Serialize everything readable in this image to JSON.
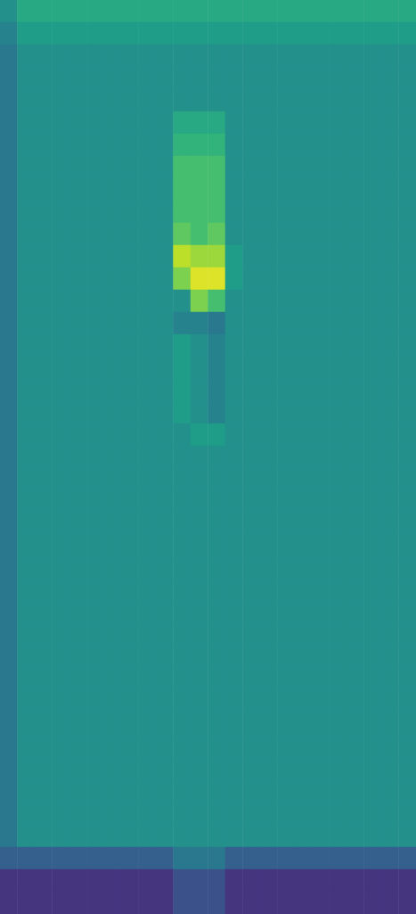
{
  "chart_data": {
    "type": "heatmap",
    "color": "viridis",
    "tick_labels": false,
    "grid": false,
    "color_range": [
      0,
      10
    ],
    "cells": [
      [
        5,
        6,
        6,
        6,
        6,
        6,
        6,
        6,
        6,
        6,
        6,
        6,
        6,
        6,
        6,
        6,
        6,
        6,
        6,
        6,
        6,
        6,
        6,
        6
      ],
      [
        4.5,
        5.5,
        5.5,
        5.5,
        5.5,
        5.5,
        5.5,
        5.5,
        5.5,
        5.5,
        5.5,
        5.5,
        5.5,
        5.5,
        5.5,
        5.5,
        5.5,
        5.5,
        5.5,
        5.5,
        5.5,
        5.5,
        5.5,
        5.5
      ],
      [
        4,
        5,
        5,
        5,
        5,
        5,
        5,
        5,
        5,
        5,
        5,
        5,
        5,
        5,
        5,
        5,
        5,
        5,
        5,
        5,
        5,
        5,
        5,
        5
      ],
      [
        4,
        5,
        5,
        5,
        5,
        5,
        5,
        5,
        5,
        5,
        5,
        5,
        5,
        5,
        5,
        5,
        5,
        5,
        5,
        5,
        5,
        5,
        5,
        5
      ],
      [
        4,
        5,
        5,
        5,
        5,
        5,
        5,
        5,
        5,
        5,
        5,
        5,
        5,
        5,
        5,
        5,
        5,
        5,
        5,
        5,
        5,
        5,
        5,
        5
      ],
      [
        4,
        5,
        5,
        5,
        5,
        5,
        5,
        5,
        5,
        5,
        6,
        6,
        6,
        5,
        5,
        5,
        5,
        5,
        5,
        5,
        5,
        5,
        5,
        5
      ],
      [
        4,
        5,
        5,
        5,
        5,
        5,
        5,
        5,
        5,
        5,
        6.5,
        6.5,
        6.5,
        5,
        5,
        5,
        5,
        5,
        5,
        5,
        5,
        5,
        5,
        5
      ],
      [
        4,
        5,
        5,
        5,
        5,
        5,
        5,
        5,
        5,
        5,
        7,
        7,
        7,
        5,
        5,
        5,
        5,
        5,
        5,
        5,
        5,
        5,
        5,
        5
      ],
      [
        4,
        5,
        5,
        5,
        5,
        5,
        5,
        5,
        5,
        5,
        7,
        7,
        7,
        5,
        5,
        5,
        5,
        5,
        5,
        5,
        5,
        5,
        5,
        5
      ],
      [
        4,
        5,
        5,
        5,
        5,
        5,
        5,
        5,
        5,
        5,
        7,
        7,
        7,
        5,
        5,
        5,
        5,
        5,
        5,
        5,
        5,
        5,
        5,
        5
      ],
      [
        4,
        5,
        5,
        5,
        5,
        5,
        5,
        5,
        5,
        5,
        7.5,
        7,
        7.5,
        5,
        5,
        5,
        5,
        5,
        5,
        5,
        5,
        5,
        5,
        5
      ],
      [
        4,
        5,
        5,
        5,
        5,
        5,
        5,
        5,
        5,
        5,
        9,
        8.5,
        8.5,
        5.5,
        5,
        5,
        5,
        5,
        5,
        5,
        5,
        5,
        5,
        5
      ],
      [
        4,
        5,
        5,
        5,
        5,
        5,
        5,
        5,
        5,
        5,
        8,
        9.5,
        9.5,
        5.5,
        5,
        5,
        5,
        5,
        5,
        5,
        5,
        5,
        5,
        5
      ],
      [
        4,
        5,
        5,
        5,
        5,
        5,
        5,
        5,
        5,
        5,
        5,
        8,
        7,
        5,
        5,
        5,
        5,
        5,
        5,
        5,
        5,
        5,
        5,
        5
      ],
      [
        4,
        5,
        5,
        5,
        5,
        5,
        5,
        5,
        5,
        5,
        4.5,
        4.5,
        4,
        5,
        5,
        5,
        5,
        5,
        5,
        5,
        5,
        5,
        5,
        5
      ],
      [
        4,
        5,
        5,
        5,
        5,
        5,
        5,
        5,
        5,
        5,
        5.5,
        5,
        4.5,
        5,
        5,
        5,
        5,
        5,
        5,
        5,
        5,
        5,
        5,
        5
      ],
      [
        4,
        5,
        5,
        5,
        5,
        5,
        5,
        5,
        5,
        5,
        5.5,
        5,
        4.5,
        5,
        5,
        5,
        5,
        5,
        5,
        5,
        5,
        5,
        5,
        5
      ],
      [
        4,
        5,
        5,
        5,
        5,
        5,
        5,
        5,
        5,
        5,
        5.5,
        5,
        4.5,
        5,
        5,
        5,
        5,
        5,
        5,
        5,
        5,
        5,
        5,
        5
      ],
      [
        4,
        5,
        5,
        5,
        5,
        5,
        5,
        5,
        5,
        5,
        5.5,
        5,
        4.5,
        5,
        5,
        5,
        5,
        5,
        5,
        5,
        5,
        5,
        5,
        5
      ],
      [
        4,
        5,
        5,
        5,
        5,
        5,
        5,
        5,
        5,
        5,
        5,
        5.5,
        5.5,
        5,
        5,
        5,
        5,
        5,
        5,
        5,
        5,
        5,
        5,
        5
      ],
      [
        4,
        5,
        5,
        5,
        5,
        5,
        5,
        5,
        5,
        5,
        5,
        5,
        5,
        5,
        5,
        5,
        5,
        5,
        5,
        5,
        5,
        5,
        5,
        5
      ],
      [
        4,
        5,
        5,
        5,
        5,
        5,
        5,
        5,
        5,
        5,
        5,
        5,
        5,
        5,
        5,
        5,
        5,
        5,
        5,
        5,
        5,
        5,
        5,
        5
      ],
      [
        4,
        5,
        5,
        5,
        5,
        5,
        5,
        5,
        5,
        5,
        5,
        5,
        5,
        5,
        5,
        5,
        5,
        5,
        5,
        5,
        5,
        5,
        5,
        5
      ],
      [
        4,
        5,
        5,
        5,
        5,
        5,
        5,
        5,
        5,
        5,
        5,
        5,
        5,
        5,
        5,
        5,
        5,
        5,
        5,
        5,
        5,
        5,
        5,
        5
      ],
      [
        4,
        5,
        5,
        5,
        5,
        5,
        5,
        5,
        5,
        5,
        5,
        5,
        5,
        5,
        5,
        5,
        5,
        5,
        5,
        5,
        5,
        5,
        5,
        5
      ],
      [
        4,
        5,
        5,
        5,
        5,
        5,
        5,
        5,
        5,
        5,
        5,
        5,
        5,
        5,
        5,
        5,
        5,
        5,
        5,
        5,
        5,
        5,
        5,
        5
      ],
      [
        4,
        5,
        5,
        5,
        5,
        5,
        5,
        5,
        5,
        5,
        5,
        5,
        5,
        5,
        5,
        5,
        5,
        5,
        5,
        5,
        5,
        5,
        5,
        5
      ],
      [
        4,
        5,
        5,
        5,
        5,
        5,
        5,
        5,
        5,
        5,
        5,
        5,
        5,
        5,
        5,
        5,
        5,
        5,
        5,
        5,
        5,
        5,
        5,
        5
      ],
      [
        4,
        5,
        5,
        5,
        5,
        5,
        5,
        5,
        5,
        5,
        5,
        5,
        5,
        5,
        5,
        5,
        5,
        5,
        5,
        5,
        5,
        5,
        5,
        5
      ],
      [
        4,
        5,
        5,
        5,
        5,
        5,
        5,
        5,
        5,
        5,
        5,
        5,
        5,
        5,
        5,
        5,
        5,
        5,
        5,
        5,
        5,
        5,
        5,
        5
      ],
      [
        4,
        5,
        5,
        5,
        5,
        5,
        5,
        5,
        5,
        5,
        5,
        5,
        5,
        5,
        5,
        5,
        5,
        5,
        5,
        5,
        5,
        5,
        5,
        5
      ],
      [
        4,
        5,
        5,
        5,
        5,
        5,
        5,
        5,
        5,
        5,
        5,
        5,
        5,
        5,
        5,
        5,
        5,
        5,
        5,
        5,
        5,
        5,
        5,
        5
      ],
      [
        4,
        5,
        5,
        5,
        5,
        5,
        5,
        5,
        5,
        5,
        5,
        5,
        5,
        5,
        5,
        5,
        5,
        5,
        5,
        5,
        5,
        5,
        5,
        5
      ],
      [
        4,
        5,
        5,
        5,
        5,
        5,
        5,
        5,
        5,
        5,
        5,
        5,
        5,
        5,
        5,
        5,
        5,
        5,
        5,
        5,
        5,
        5,
        5,
        5
      ],
      [
        4,
        5,
        5,
        5,
        5,
        5,
        5,
        5,
        5,
        5,
        5,
        5,
        5,
        5,
        5,
        5,
        5,
        5,
        5,
        5,
        5,
        5,
        5,
        5
      ],
      [
        4,
        5,
        5,
        5,
        5,
        5,
        5,
        5,
        5,
        5,
        5,
        5,
        5,
        5,
        5,
        5,
        5,
        5,
        5,
        5,
        5,
        5,
        5,
        5
      ],
      [
        4,
        5,
        5,
        5,
        5,
        5,
        5,
        5,
        5,
        5,
        5,
        5,
        5,
        5,
        5,
        5,
        5,
        5,
        5,
        5,
        5,
        5,
        5,
        5
      ],
      [
        4,
        5,
        5,
        5,
        5,
        5,
        5,
        5,
        5,
        5,
        5,
        5,
        5,
        5,
        5,
        5,
        5,
        5,
        5,
        5,
        5,
        5,
        5,
        5
      ],
      [
        3,
        3,
        3,
        3,
        3,
        3,
        3,
        3,
        3,
        3,
        4,
        4,
        4,
        3,
        3,
        3,
        3,
        3,
        3,
        3,
        3,
        3,
        3,
        3
      ],
      [
        1.5,
        1.5,
        1.5,
        1.5,
        1.5,
        1.5,
        1.5,
        1.5,
        1.5,
        1.5,
        2.5,
        2.5,
        2.5,
        1.5,
        1.5,
        1.5,
        1.5,
        1.5,
        1.5,
        1.5,
        1.5,
        1.5,
        1.5,
        1.5
      ],
      [
        1.5,
        1.5,
        1.5,
        1.5,
        1.5,
        1.5,
        1.5,
        1.5,
        1.5,
        1.5,
        2.5,
        2.5,
        2.5,
        1.5,
        1.5,
        1.5,
        1.5,
        1.5,
        1.5,
        1.5,
        1.5,
        1.5,
        1.5,
        1.5
      ]
    ]
  }
}
